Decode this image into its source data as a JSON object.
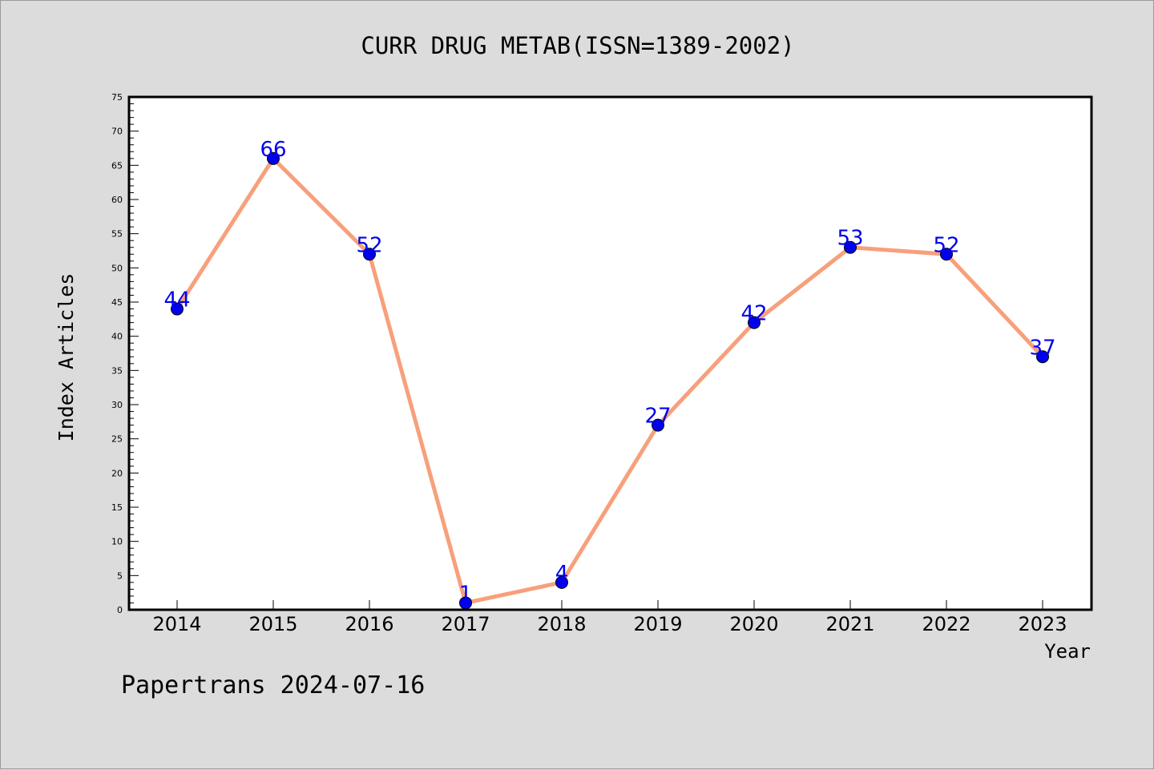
{
  "chart_data": {
    "type": "line",
    "title": "CURR DRUG METAB(ISSN=1389-2002)",
    "xlabel": "Year",
    "ylabel": "Index Articles",
    "categories": [
      "2014",
      "2015",
      "2016",
      "2017",
      "2018",
      "2019",
      "2020",
      "2021",
      "2022",
      "2023"
    ],
    "values": [
      44,
      66,
      52,
      1,
      4,
      27,
      42,
      53,
      52,
      37
    ],
    "data_labels": [
      "44",
      "66",
      "52",
      "1",
      "4",
      "27",
      "42",
      "53",
      "52",
      "37"
    ],
    "ylim": [
      0,
      75
    ],
    "yticks": [
      "0",
      "5",
      "10",
      "15",
      "20",
      "25",
      "30",
      "35",
      "40",
      "45",
      "50",
      "55",
      "60",
      "65",
      "70",
      "75"
    ],
    "grid": false,
    "legend": "none",
    "colors": {
      "line": "#f7a07c",
      "marker": "#0000ee",
      "label": "#0000ee",
      "background": "#dcdcdc",
      "plot_area": "#ffffff"
    }
  },
  "footer": {
    "watermark": "Papertrans 2024-07-16"
  }
}
